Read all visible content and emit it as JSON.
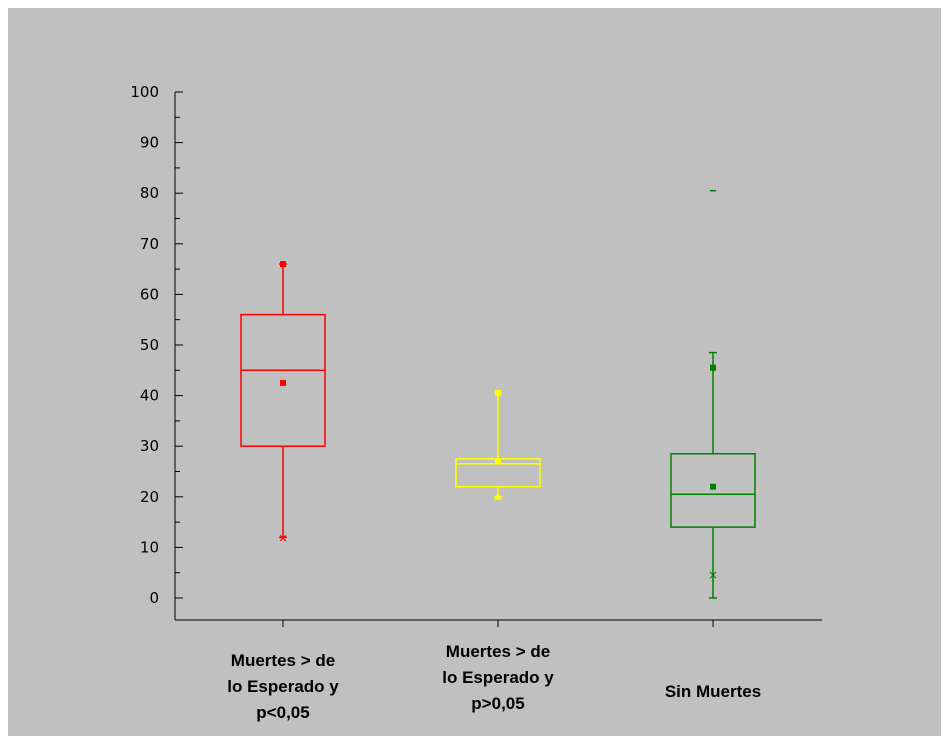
{
  "chart_data": {
    "type": "box",
    "title": "",
    "xlabel": "",
    "ylabel": "",
    "ylim": [
      0,
      100
    ],
    "y_ticks": [
      0,
      10,
      20,
      30,
      40,
      50,
      60,
      70,
      80,
      90,
      100
    ],
    "grid": false,
    "groups": [
      {
        "label_lines": [
          "Muertes > de",
          "lo Esperado y",
          "p<0,05"
        ],
        "color": "#ff0000",
        "min": 12,
        "q1": 30,
        "median": 45,
        "q3": 56,
        "max": 66,
        "mean": 42.5,
        "outliers": []
      },
      {
        "label_lines": [
          "Muertes > de",
          "lo Esperado y",
          "p>0,05"
        ],
        "color": "#ffff00",
        "min": 20,
        "q1": 22,
        "median": 26.5,
        "q3": 27.5,
        "max": 40.5,
        "mean": 27,
        "outliers": [
          20
        ]
      },
      {
        "label_lines": [
          "Sin Muertes"
        ],
        "color": "#008000",
        "min": 0,
        "q1": 14,
        "median": 20.5,
        "q3": 28.5,
        "max": 48.5,
        "mean": 22,
        "p1": 4.5,
        "p99": 45.5,
        "outliers": [
          80.5
        ]
      }
    ]
  }
}
